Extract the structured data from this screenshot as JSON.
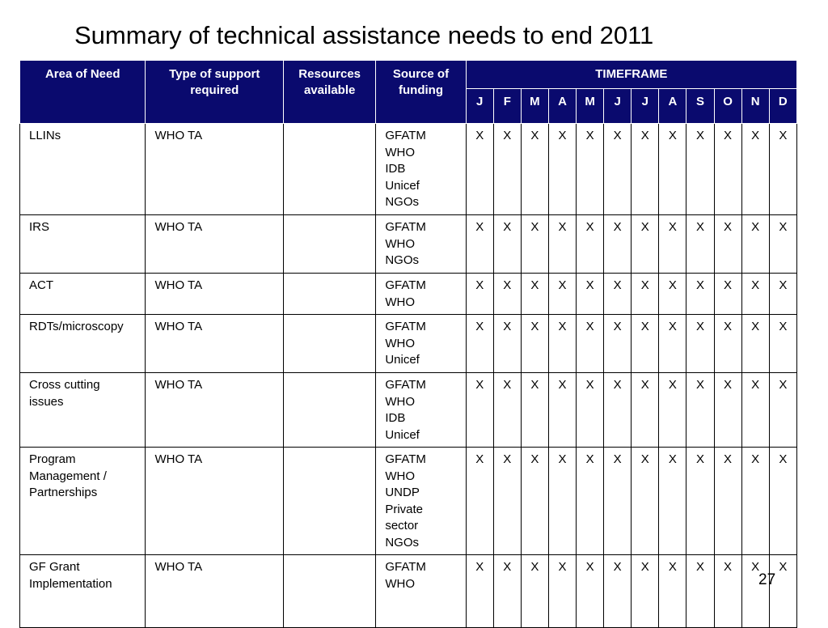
{
  "title": "Summary of technical assistance needs to end 2011",
  "page_number": "27",
  "header": {
    "area": "Area of Need",
    "type": "Type of support required",
    "resources": "Resources available",
    "source": "Source of funding",
    "timeframe": "TIMEFRAME",
    "months": [
      "J",
      "F",
      "M",
      "A",
      "M",
      "J",
      "J",
      "A",
      "S",
      "O",
      "N",
      "D"
    ]
  },
  "rows": [
    {
      "area": [
        "LLINs"
      ],
      "type": "WHO TA",
      "resources": "",
      "source": [
        "GFATM",
        "WHO",
        "IDB",
        "Unicef",
        "NGOs"
      ],
      "marks": [
        "X",
        "X",
        "X",
        "X",
        "X",
        "X",
        "X",
        "X",
        "X",
        "X",
        "X",
        "X"
      ]
    },
    {
      "area": [
        "IRS"
      ],
      "type": "WHO TA",
      "resources": "",
      "source": [
        "GFATM",
        "WHO",
        "NGOs"
      ],
      "marks": [
        "X",
        "X",
        "X",
        "X",
        "X",
        "X",
        "X",
        "X",
        "X",
        "X",
        "X",
        "X"
      ]
    },
    {
      "area": [
        "ACT"
      ],
      "type": "WHO TA",
      "resources": "",
      "source": [
        "GFATM",
        "WHO"
      ],
      "marks": [
        "X",
        "X",
        "X",
        "X",
        "X",
        "X",
        "X",
        "X",
        "X",
        "X",
        "X",
        "X"
      ]
    },
    {
      "area": [
        "RDTs/microscopy"
      ],
      "type": "WHO TA",
      "resources": "",
      "source": [
        "GFATM",
        "WHO",
        "Unicef"
      ],
      "marks": [
        "X",
        "X",
        "X",
        "X",
        "X",
        "X",
        "X",
        "X",
        "X",
        "X",
        "X",
        "X"
      ]
    },
    {
      "area": [
        "Cross cutting",
        "issues"
      ],
      "type": "WHO TA",
      "resources": "",
      "source": [
        "GFATM",
        "WHO",
        "IDB",
        "Unicef"
      ],
      "marks": [
        "X",
        "X",
        "X",
        "X",
        "X",
        "X",
        "X",
        "X",
        "X",
        "X",
        "X",
        "X"
      ]
    },
    {
      "area": [
        "Program",
        "Management /",
        "Partnerships"
      ],
      "type": "WHO TA",
      "resources": "",
      "source": [
        "GFATM",
        "WHO",
        "UNDP",
        "Private",
        "sector",
        "NGOs"
      ],
      "marks": [
        "X",
        "X",
        "X",
        "X",
        "X",
        "X",
        "X",
        "X",
        "X",
        "X",
        "X",
        "X"
      ]
    },
    {
      "area": [
        "GF Grant",
        "Implementation"
      ],
      "type": "WHO TA",
      "resources": "",
      "source": [
        "GFATM",
        "WHO"
      ],
      "marks": [
        "X",
        "X",
        "X",
        "X",
        "X",
        "X",
        "X",
        "X",
        "X",
        "X",
        "X",
        "X"
      ]
    }
  ]
}
